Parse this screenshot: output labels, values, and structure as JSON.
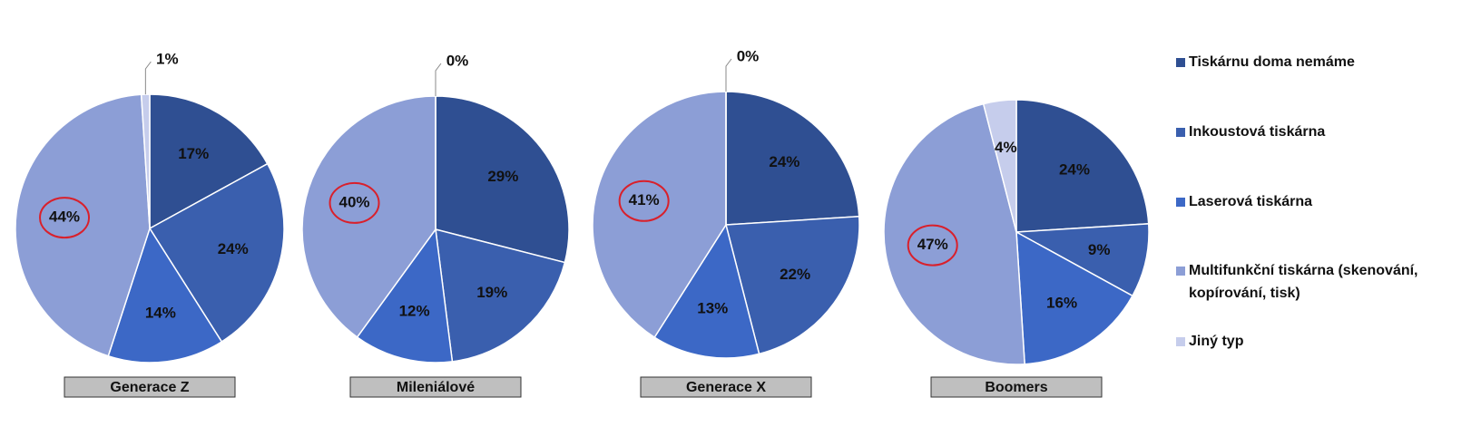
{
  "chart_data": {
    "type": "pie",
    "categories": [
      "Tiskárnu doma nemáme",
      "Inkoustová tiskárna",
      "Laserová tiskárna",
      "Multifunkční tiskárna (skenování, kopírování, tisk)",
      "Jiný typ"
    ],
    "colors": [
      "#2f4f92",
      "#3a5fae",
      "#3c68c6",
      "#8c9ed6",
      "#c6cdec"
    ],
    "series": [
      {
        "name": "Generace Z",
        "values": [
          17,
          24,
          14,
          44,
          1
        ],
        "value_labels": [
          "17%",
          "24%",
          "14%",
          "44%",
          "1%"
        ]
      },
      {
        "name": "Mileniálové",
        "values": [
          29,
          19,
          12,
          40,
          0
        ],
        "value_labels": [
          "29%",
          "19%",
          "12%",
          "40%",
          "0%"
        ]
      },
      {
        "name": "Generace X",
        "values": [
          24,
          22,
          13,
          41,
          0
        ],
        "value_labels": [
          "24%",
          "22%",
          "13%",
          "41%",
          "0%"
        ]
      },
      {
        "name": "Boomers",
        "values": [
          24,
          9,
          16,
          47,
          4
        ],
        "value_labels": [
          "24%",
          "9%",
          "16%",
          "47%",
          "4%"
        ]
      }
    ],
    "legend": "right"
  }
}
